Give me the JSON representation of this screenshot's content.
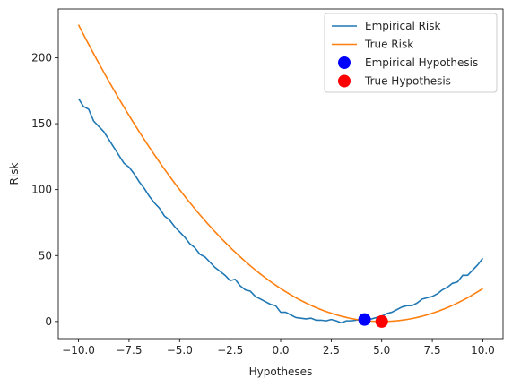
{
  "chart_data": {
    "type": "line",
    "xlabel": "Hypotheses",
    "ylabel": "Risk",
    "xlim": [
      -11.0,
      11.0
    ],
    "ylim": [
      -13,
      237
    ],
    "xticks": [
      -10.0,
      -7.5,
      -5.0,
      -2.5,
      0.0,
      2.5,
      5.0,
      7.5,
      10.0
    ],
    "xtick_labels": [
      "−10.0",
      "−7.5",
      "−5.0",
      "−2.5",
      "0.0",
      "2.5",
      "5.0",
      "7.5",
      "10.0"
    ],
    "yticks": [
      0,
      50,
      100,
      150,
      200
    ],
    "ytick_labels": [
      "0",
      "50",
      "100",
      "150",
      "200"
    ],
    "grid": false,
    "legend_position": "top-right",
    "colors": {
      "empirical": "#1f77b4",
      "true": "#ff7f0e",
      "empirical_hypothesis": "#0000ff",
      "true_hypothesis": "#ff0000"
    },
    "series": [
      {
        "name": "Empirical Risk",
        "kind": "line",
        "x": [
          -10.0,
          -9.75,
          -9.5,
          -9.25,
          -9.0,
          -8.75,
          -8.5,
          -8.25,
          -8.0,
          -7.75,
          -7.5,
          -7.25,
          -7.0,
          -6.75,
          -6.5,
          -6.25,
          -6.0,
          -5.75,
          -5.5,
          -5.25,
          -5.0,
          -4.75,
          -4.5,
          -4.25,
          -4.0,
          -3.75,
          -3.5,
          -3.25,
          -3.0,
          -2.75,
          -2.5,
          -2.25,
          -2.0,
          -1.75,
          -1.5,
          -1.25,
          -1.0,
          -0.75,
          -0.5,
          -0.25,
          0.0,
          0.25,
          0.5,
          0.75,
          1.0,
          1.25,
          1.5,
          1.75,
          2.0,
          2.25,
          2.5,
          2.75,
          3.0,
          3.25,
          3.5,
          3.75,
          4.0,
          4.25,
          4.5,
          4.75,
          5.0,
          5.25,
          5.5,
          5.75,
          6.0,
          6.25,
          6.5,
          6.75,
          7.0,
          7.25,
          7.5,
          7.75,
          8.0,
          8.25,
          8.5,
          8.75,
          9.0,
          9.25,
          9.5,
          9.75,
          10.0
        ],
        "values": [
          169,
          163,
          161,
          152,
          148,
          144,
          138,
          132,
          126,
          120,
          117,
          112,
          106,
          101,
          95,
          90,
          86,
          80,
          77,
          72,
          68,
          64,
          59,
          56,
          51,
          49,
          45,
          41,
          38,
          35,
          31,
          32,
          27,
          24,
          23,
          19,
          17,
          15,
          13,
          12,
          7,
          7,
          5,
          3,
          2.5,
          2,
          2.5,
          1,
          1,
          0.5,
          1.5,
          0.5,
          -1,
          0.5,
          0.5,
          1,
          1.5,
          1.5,
          2,
          3,
          4,
          6,
          7,
          9,
          11,
          12,
          12,
          14,
          17,
          18,
          19,
          21,
          24,
          26,
          29,
          30,
          35,
          35,
          39,
          43,
          48
        ]
      },
      {
        "name": "True Risk",
        "kind": "line",
        "function": "(x-5)^2",
        "x_range": [
          -10.0,
          10.0
        ]
      },
      {
        "name": "Empirical Hypothesis",
        "kind": "point",
        "x": 4.15,
        "y": 1.5
      },
      {
        "name": "True Hypothesis",
        "kind": "point",
        "x": 5.0,
        "y": 0.0
      }
    ]
  }
}
